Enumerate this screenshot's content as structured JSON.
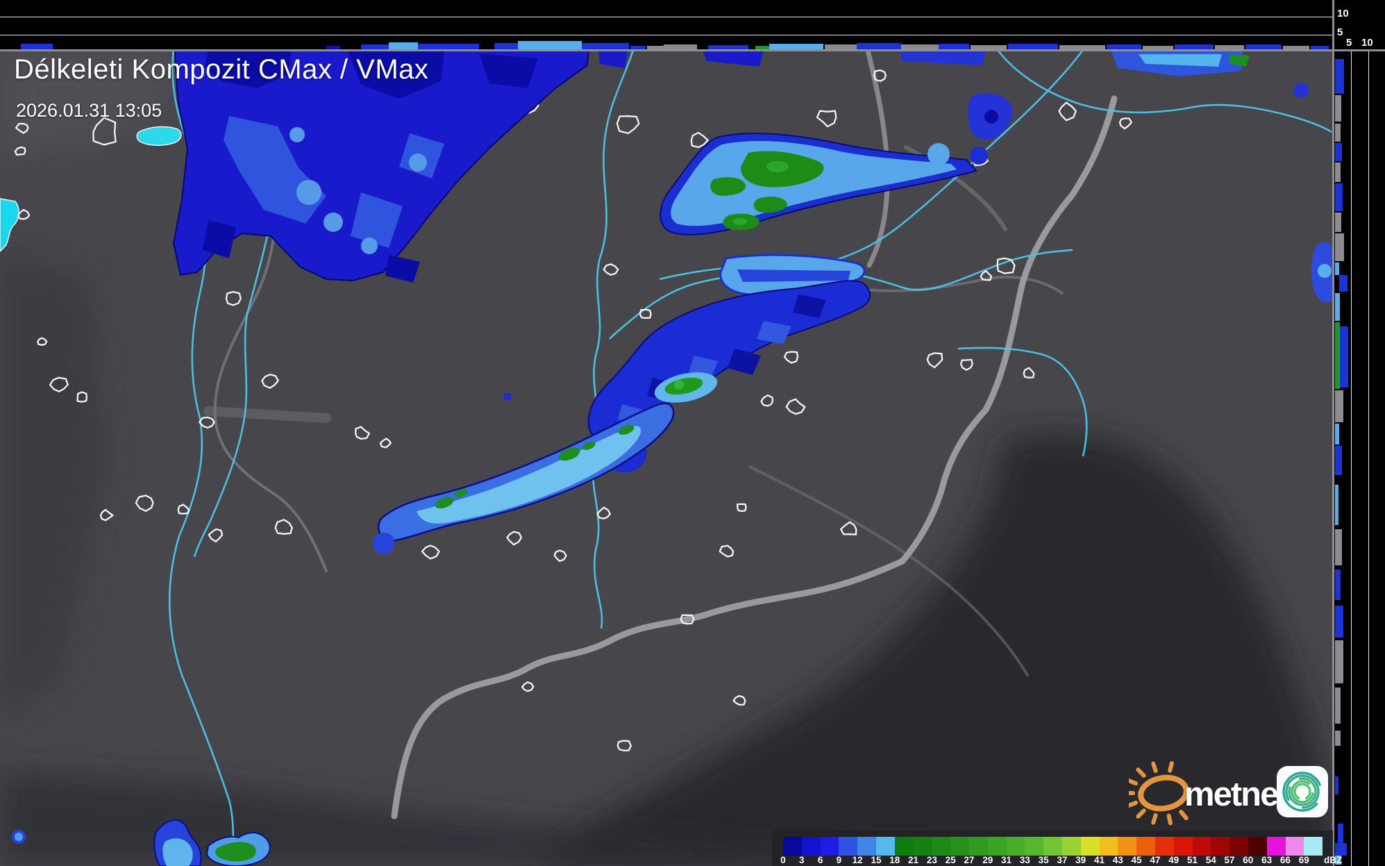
{
  "header": {
    "title": "Délkeleti Kompozit CMax / VMax",
    "datetime": "2026.01.31 13:05"
  },
  "profiles": {
    "top_axis_labels": [
      "10",
      "5"
    ],
    "right_axis_labels": [
      "5",
      "10"
    ],
    "bar_colors": {
      "b": "#1d33d6",
      "lb": "#56aeec",
      "gy": "#8b8b90",
      "gr": "#1f9a1f",
      "db": "#0d12ac"
    },
    "top_bars": [
      [
        30,
        46,
        9,
        "b"
      ],
      [
        470,
        20,
        6,
        "db"
      ],
      [
        520,
        40,
        8,
        "b"
      ],
      [
        560,
        42,
        11,
        "lb"
      ],
      [
        602,
        88,
        9,
        "b"
      ],
      [
        712,
        34,
        10,
        "b"
      ],
      [
        746,
        92,
        13,
        "lb"
      ],
      [
        838,
        68,
        10,
        "b"
      ],
      [
        908,
        22,
        6,
        "b"
      ],
      [
        932,
        24,
        6,
        "gy"
      ],
      [
        956,
        48,
        8,
        "gy"
      ],
      [
        1020,
        58,
        7,
        "b"
      ],
      [
        1088,
        20,
        6,
        "gr"
      ],
      [
        1108,
        78,
        9,
        "lb"
      ],
      [
        1188,
        46,
        8,
        "gy"
      ],
      [
        1234,
        64,
        10,
        "b"
      ],
      [
        1298,
        54,
        8,
        "gy"
      ],
      [
        1352,
        44,
        9,
        "b"
      ],
      [
        1398,
        52,
        7,
        "gy"
      ],
      [
        1452,
        72,
        9,
        "b"
      ],
      [
        1526,
        66,
        7,
        "gy"
      ],
      [
        1594,
        50,
        8,
        "b"
      ],
      [
        1646,
        44,
        6,
        "gy"
      ],
      [
        1692,
        56,
        8,
        "b"
      ],
      [
        1750,
        42,
        7,
        "gy"
      ],
      [
        1794,
        52,
        8,
        "b"
      ],
      [
        1848,
        38,
        6,
        "gy"
      ],
      [
        1888,
        26,
        6,
        "b"
      ]
    ],
    "right_bars": [
      [
        85,
        50,
        13,
        "b",
        0
      ],
      [
        137,
        38,
        9,
        "gy",
        0
      ],
      [
        178,
        26,
        8,
        "gy",
        0
      ],
      [
        206,
        26,
        10,
        "b",
        0
      ],
      [
        234,
        28,
        8,
        "gy",
        0
      ],
      [
        264,
        40,
        11,
        "b",
        0
      ],
      [
        306,
        28,
        9,
        "gy",
        0
      ],
      [
        336,
        40,
        13,
        "gy",
        0
      ],
      [
        378,
        18,
        6,
        "lb",
        0
      ],
      [
        396,
        24,
        12,
        "b",
        6
      ],
      [
        422,
        40,
        7,
        "lb",
        0
      ],
      [
        464,
        96,
        7,
        "gr",
        0
      ],
      [
        470,
        88,
        12,
        "b",
        7
      ],
      [
        562,
        46,
        12,
        "gy",
        0
      ],
      [
        610,
        30,
        6,
        "lb",
        0
      ],
      [
        642,
        42,
        10,
        "b",
        0
      ],
      [
        698,
        58,
        5,
        "lb",
        0
      ],
      [
        762,
        52,
        10,
        "gy",
        0
      ],
      [
        820,
        44,
        8,
        "b",
        0
      ],
      [
        872,
        46,
        12,
        "b",
        0
      ],
      [
        922,
        62,
        12,
        "gy",
        0
      ],
      [
        990,
        52,
        8,
        "gy",
        0
      ],
      [
        1052,
        22,
        8,
        "gy",
        0
      ],
      [
        1118,
        26,
        5,
        "b",
        0
      ],
      [
        1186,
        30,
        8,
        "b",
        4
      ],
      [
        1214,
        18,
        17,
        "b",
        0
      ],
      [
        1232,
        13,
        9,
        "lb",
        0
      ]
    ]
  },
  "scale": {
    "unit": "dBZ",
    "labels": [
      "0",
      "3",
      "6",
      "9",
      "12",
      "15",
      "18",
      "21",
      "23",
      "25",
      "27",
      "29",
      "31",
      "33",
      "35",
      "37",
      "39",
      "41",
      "43",
      "45",
      "47",
      "49",
      "51",
      "54",
      "57",
      "60",
      "63",
      "66",
      "69"
    ],
    "colors": [
      "#08089a",
      "#1212cf",
      "#1d1de4",
      "#2e52e2",
      "#3f85e8",
      "#54baee",
      "#0e7c0e",
      "#158112",
      "#1d8916",
      "#26921a",
      "#309b1e",
      "#3aa522",
      "#46ae27",
      "#55b82c",
      "#71c432",
      "#9ad134",
      "#d8e028",
      "#f2bf1e",
      "#f29214",
      "#ed5f0e",
      "#e52e0a",
      "#da1509",
      "#bf0b07",
      "#a10606",
      "#7c0303",
      "#4e0101",
      "#e415d8",
      "#f088ec",
      "#a8e9f4"
    ]
  },
  "logo": {
    "text": "metnet"
  }
}
